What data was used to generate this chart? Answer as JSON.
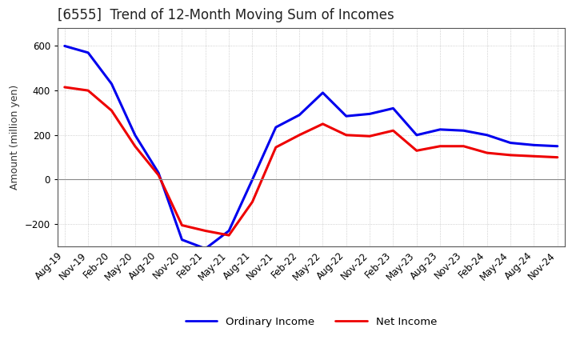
{
  "title": "[6555]  Trend of 12-Month Moving Sum of Incomes",
  "ylabel": "Amount (million yen)",
  "background_color": "#ffffff",
  "grid_color": "#aaaaaa",
  "x_labels": [
    "Aug-19",
    "Nov-19",
    "Feb-20",
    "May-20",
    "Aug-20",
    "Nov-20",
    "Feb-21",
    "May-21",
    "Aug-21",
    "Nov-21",
    "Feb-22",
    "May-22",
    "Aug-22",
    "Nov-22",
    "Feb-23",
    "May-23",
    "Aug-23",
    "Nov-23",
    "Feb-24",
    "May-24",
    "Aug-24",
    "Nov-24"
  ],
  "ordinary_income": [
    600,
    570,
    430,
    200,
    30,
    -270,
    -310,
    -230,
    0,
    235,
    290,
    390,
    285,
    295,
    320,
    200,
    225,
    220,
    200,
    165,
    155,
    150
  ],
  "net_income": [
    415,
    400,
    310,
    150,
    20,
    -205,
    -230,
    -250,
    -100,
    145,
    200,
    250,
    200,
    195,
    220,
    130,
    150,
    150,
    120,
    110,
    105,
    100
  ],
  "ordinary_color": "#0000ee",
  "net_color": "#ee0000",
  "ylim": [
    -300,
    680
  ],
  "yticks": [
    -200,
    0,
    200,
    400,
    600
  ],
  "line_width": 2.2,
  "title_fontsize": 12,
  "tick_fontsize": 8.5,
  "ylabel_fontsize": 9,
  "legend_fontsize": 9.5
}
